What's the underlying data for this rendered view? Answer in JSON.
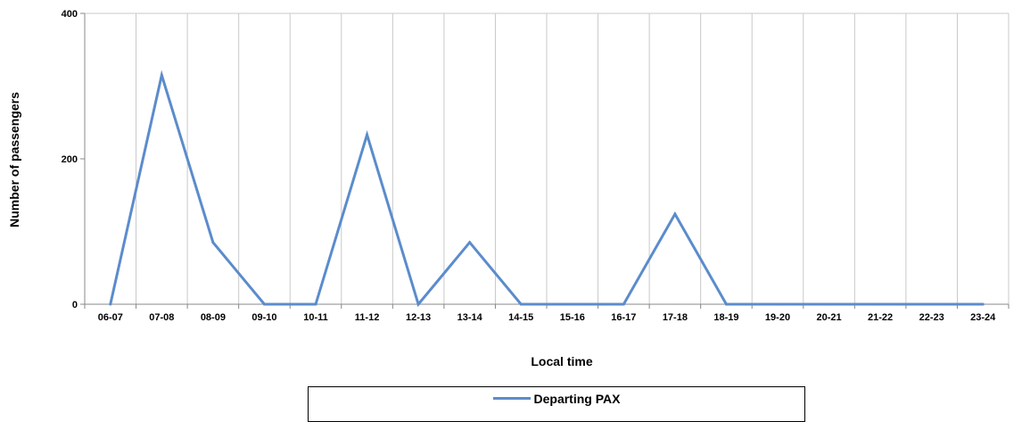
{
  "chart_data": {
    "type": "line",
    "xlabel": "Local time",
    "ylabel": "Number of passengers",
    "ylim": [
      0,
      400
    ],
    "yticks": [
      0,
      200,
      400
    ],
    "grid": "vertical",
    "legend_position": "bottom",
    "categories": [
      "06-07",
      "07-08",
      "08-09",
      "09-10",
      "10-11",
      "11-12",
      "12-13",
      "13-14",
      "14-15",
      "15-16",
      "16-17",
      "17-18",
      "18-19",
      "19-20",
      "20-21",
      "21-22",
      "22-23",
      "23-24"
    ],
    "series": [
      {
        "name": "Departing PAX",
        "color": "#5b8ccc",
        "values": [
          0,
          315,
          85,
          0,
          0,
          233,
          0,
          85,
          0,
          0,
          0,
          124,
          0,
          0,
          0,
          0,
          0,
          0
        ]
      }
    ]
  }
}
